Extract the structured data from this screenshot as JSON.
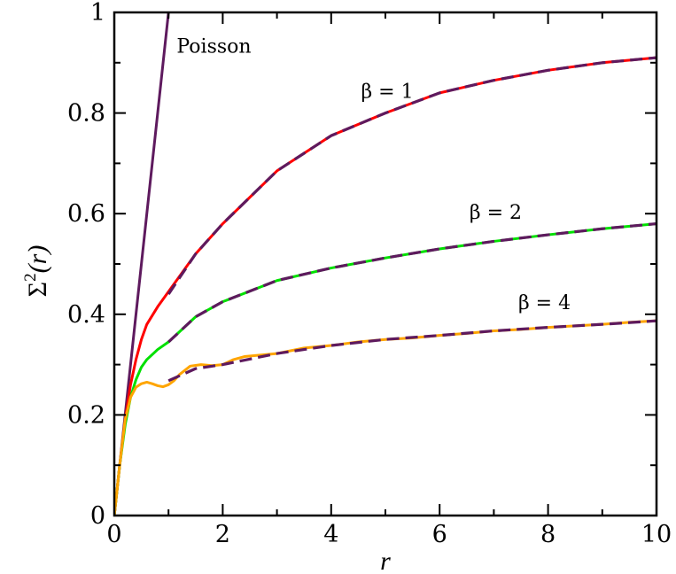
{
  "chart_data": {
    "type": "line",
    "title": "",
    "xlabel": "r",
    "ylabel_main": "Σ",
    "ylabel_sup": "2",
    "ylabel_arg": "(r)",
    "xlim": [
      0,
      10
    ],
    "ylim": [
      0,
      1
    ],
    "xticks": [
      0,
      2,
      4,
      6,
      8,
      10
    ],
    "yticks": [
      0,
      0.2,
      0.4,
      0.6,
      0.8,
      1
    ],
    "xtick_labels": [
      "0",
      "2",
      "4",
      "6",
      "8",
      "10"
    ],
    "ytick_labels": [
      "0",
      "0.2",
      "0.4",
      "0.6",
      "0.8",
      "1"
    ],
    "grid": false,
    "annotations": [
      {
        "text": "Poisson",
        "x": 1.15,
        "y": 0.92
      },
      {
        "text": "β = 1",
        "x": 4.55,
        "y": 0.83
      },
      {
        "text": "β = 2",
        "x": 6.55,
        "y": 0.59
      },
      {
        "text": "β = 4",
        "x": 7.45,
        "y": 0.41
      }
    ],
    "series": [
      {
        "color": "#5e1a5e",
        "style": "solid",
        "x": [
          0,
          1.0
        ],
        "y": [
          0,
          1.0
        ]
      },
      {
        "color": "#ff0000",
        "style": "solid",
        "x": [
          0,
          0.05,
          0.1,
          0.2,
          0.3,
          0.4,
          0.5,
          0.6,
          0.8,
          1.0,
          1.5,
          2,
          3,
          4,
          5,
          6,
          7,
          8,
          9,
          10
        ],
        "y": [
          0,
          0.05,
          0.1,
          0.19,
          0.26,
          0.31,
          0.35,
          0.38,
          0.415,
          0.445,
          0.52,
          0.58,
          0.685,
          0.755,
          0.8,
          0.84,
          0.865,
          0.885,
          0.9,
          0.91
        ]
      },
      {
        "color": "#00e000",
        "style": "solid",
        "x": [
          0,
          0.05,
          0.1,
          0.2,
          0.3,
          0.4,
          0.5,
          0.6,
          0.8,
          1.0,
          1.5,
          2,
          3,
          4,
          5,
          6,
          7,
          8,
          9,
          10
        ],
        "y": [
          0,
          0.05,
          0.1,
          0.18,
          0.235,
          0.27,
          0.295,
          0.31,
          0.33,
          0.345,
          0.395,
          0.425,
          0.467,
          0.492,
          0.512,
          0.53,
          0.545,
          0.558,
          0.57,
          0.58
        ]
      },
      {
        "color": "#ffa500",
        "style": "solid",
        "x": [
          0,
          0.05,
          0.1,
          0.2,
          0.3,
          0.4,
          0.5,
          0.6,
          0.7,
          0.8,
          0.9,
          1.0,
          1.1,
          1.2,
          1.4,
          1.6,
          1.8,
          2.0,
          2.2,
          2.4,
          2.6,
          3,
          3.5,
          4,
          4.5,
          5,
          5.5,
          6,
          6.5,
          7,
          7.5,
          8,
          8.5,
          9,
          9.5,
          10
        ],
        "y": [
          0,
          0.05,
          0.1,
          0.19,
          0.235,
          0.255,
          0.262,
          0.265,
          0.262,
          0.258,
          0.256,
          0.26,
          0.268,
          0.28,
          0.297,
          0.3,
          0.298,
          0.3,
          0.31,
          0.316,
          0.318,
          0.322,
          0.333,
          0.338,
          0.345,
          0.35,
          0.353,
          0.358,
          0.362,
          0.367,
          0.37,
          0.374,
          0.377,
          0.38,
          0.384,
          0.387
        ]
      },
      {
        "color": "#5e1a5e",
        "style": "dashed",
        "x": [
          1,
          1.5,
          2,
          3,
          4,
          5,
          6,
          7,
          8,
          9,
          10
        ],
        "y": [
          0.44,
          0.52,
          0.58,
          0.685,
          0.755,
          0.8,
          0.84,
          0.865,
          0.885,
          0.9,
          0.91
        ]
      },
      {
        "color": "#5e1a5e",
        "style": "dashed",
        "x": [
          1,
          1.5,
          2,
          3,
          4,
          5,
          6,
          7,
          8,
          9,
          10
        ],
        "y": [
          0.345,
          0.395,
          0.425,
          0.467,
          0.492,
          0.512,
          0.53,
          0.545,
          0.558,
          0.57,
          0.58
        ]
      },
      {
        "color": "#5e1a5e",
        "style": "dashed",
        "x": [
          1,
          1.5,
          2,
          3,
          4,
          5,
          6,
          7,
          8,
          9,
          10
        ],
        "y": [
          0.268,
          0.292,
          0.3,
          0.322,
          0.338,
          0.35,
          0.358,
          0.367,
          0.374,
          0.38,
          0.387
        ]
      }
    ]
  }
}
